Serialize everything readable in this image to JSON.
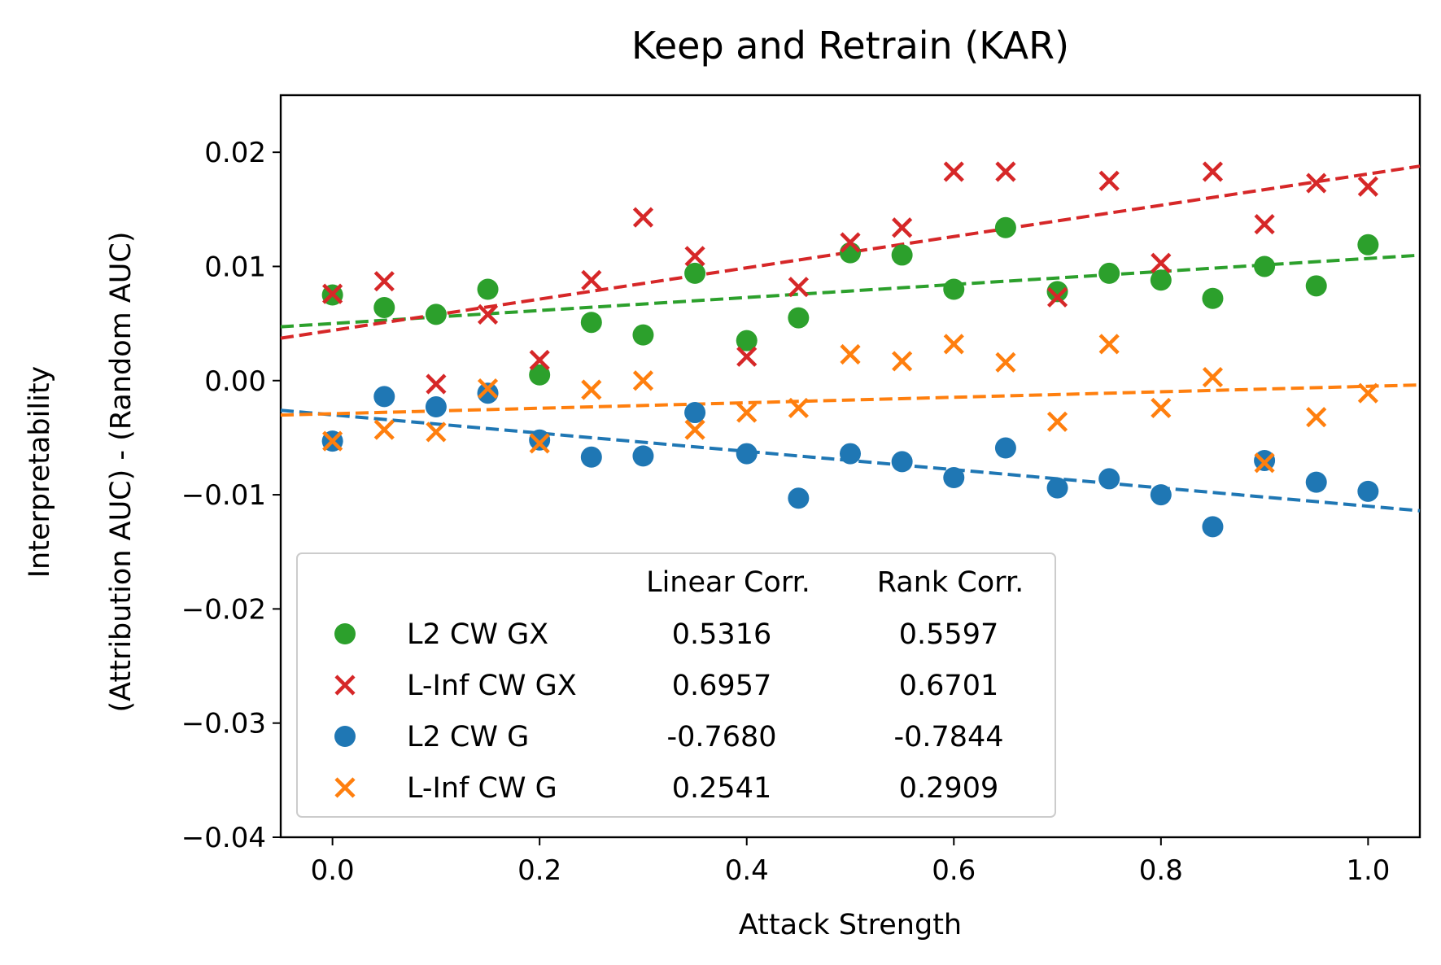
{
  "chart_data": {
    "type": "scatter",
    "title": "Keep and Retrain (KAR)",
    "xlabel": "Attack Strength",
    "ylabel_line1": "Interpretability",
    "ylabel_line2": "(Attribution AUC) - (Random AUC)",
    "xlim": [
      -0.05,
      1.05
    ],
    "ylim": [
      -0.04,
      0.025
    ],
    "xticks": [
      0.0,
      0.2,
      0.4,
      0.6,
      0.8,
      1.0
    ],
    "xtick_labels": [
      "0.0",
      "0.2",
      "0.4",
      "0.6",
      "0.8",
      "1.0"
    ],
    "yticks": [
      0.02,
      0.01,
      0.0,
      -0.01,
      -0.02,
      -0.03,
      -0.04
    ],
    "ytick_labels": [
      "0.02",
      "0.01",
      "0.00",
      "−0.01",
      "−0.02",
      "−0.03",
      "−0.04"
    ],
    "x": [
      0.0,
      0.05,
      0.1,
      0.15,
      0.2,
      0.25,
      0.3,
      0.35,
      0.4,
      0.45,
      0.5,
      0.55,
      0.6,
      0.65,
      0.7,
      0.75,
      0.8,
      0.85,
      0.9,
      0.95,
      1.0
    ],
    "legend": {
      "placement": "lower-left",
      "col_headers": [
        "Linear Corr.",
        "Rank Corr."
      ]
    },
    "series": [
      {
        "name": "L2 CW GX",
        "marker": "circle",
        "color": "#2ca02c",
        "linear_corr": "0.5316",
        "rank_corr": "0.5597",
        "values": [
          0.0075,
          0.0064,
          0.0058,
          0.008,
          0.0005,
          0.0051,
          0.004,
          0.0094,
          0.0035,
          0.0055,
          0.0112,
          0.011,
          0.008,
          0.0134,
          0.0078,
          0.0094,
          0.0088,
          0.0072,
          0.01,
          0.0083,
          0.0119
        ],
        "fit": [
          0.005,
          0.0107
        ]
      },
      {
        "name": "L-Inf CW GX",
        "marker": "x",
        "color": "#d62728",
        "linear_corr": "0.6957",
        "rank_corr": "0.6701",
        "values": [
          0.0076,
          0.0087,
          -0.0003,
          0.0058,
          0.0018,
          0.0088,
          0.0143,
          0.0109,
          0.0021,
          0.0082,
          0.0121,
          0.0134,
          0.0183,
          0.0183,
          0.0073,
          0.0175,
          0.0103,
          0.0183,
          0.0137,
          0.0173,
          0.017
        ],
        "fit": [
          0.0044,
          0.0181
        ]
      },
      {
        "name": "L2 CW G",
        "marker": "circle",
        "color": "#1f77b4",
        "linear_corr": "-0.7680",
        "rank_corr": "-0.7844",
        "values": [
          -0.0053,
          -0.0014,
          -0.0023,
          -0.0011,
          -0.0052,
          -0.0067,
          -0.0066,
          -0.0028,
          -0.0064,
          -0.0103,
          -0.0064,
          -0.0071,
          -0.0085,
          -0.0059,
          -0.0094,
          -0.0086,
          -0.01,
          -0.0128,
          -0.007,
          -0.0089,
          -0.0097
        ],
        "fit": [
          -0.003,
          -0.011
        ]
      },
      {
        "name": "L-Inf CW G",
        "marker": "x",
        "color": "#ff7f0e",
        "linear_corr": "0.2541",
        "rank_corr": "0.2909",
        "values": [
          -0.0053,
          -0.0043,
          -0.0045,
          -0.0007,
          -0.0055,
          -0.0008,
          0.0,
          -0.0043,
          -0.0028,
          -0.0024,
          0.0023,
          0.0017,
          0.0032,
          0.0016,
          -0.0036,
          0.0032,
          -0.0024,
          0.0003,
          -0.0072,
          -0.0032,
          -0.0011
        ],
        "fit": [
          -0.0029,
          -0.0005
        ]
      }
    ]
  }
}
